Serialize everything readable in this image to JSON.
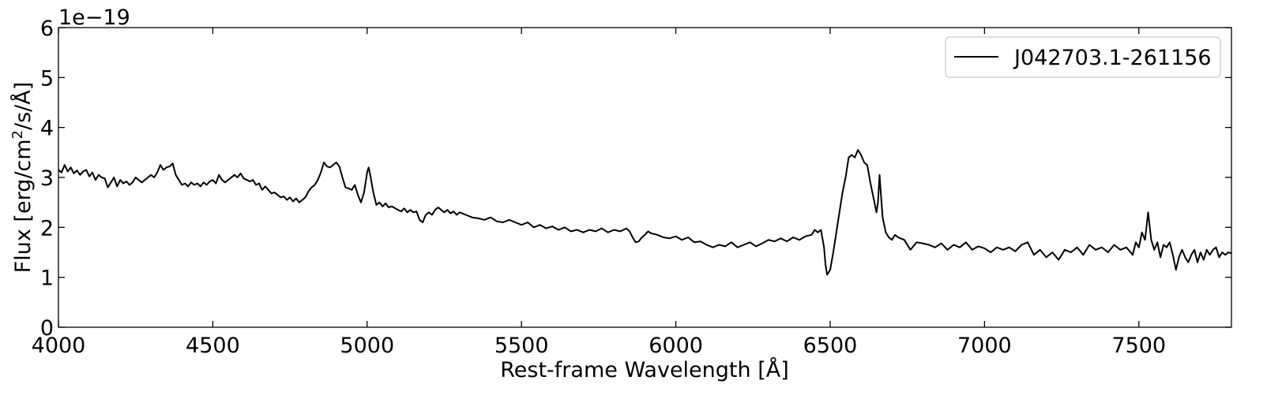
{
  "chart_data": {
    "type": "line",
    "xlabel": "Rest-frame Wavelength [Å]",
    "ylabel_main": "Flux [erg/cm",
    "ylabel_sup": "2",
    "ylabel_tail": "/s/Å]",
    "y_offset_text": "1e−19",
    "xlim": [
      4000,
      7800
    ],
    "ylim": [
      0,
      6
    ],
    "y_scale_factor": 1e-19,
    "x_ticks": [
      4000,
      4500,
      5000,
      5500,
      6000,
      6500,
      7000,
      7500
    ],
    "y_ticks": [
      0,
      1,
      2,
      3,
      4,
      5,
      6
    ],
    "x_tick_labels": [
      "4000",
      "4500",
      "5000",
      "5500",
      "6000",
      "6500",
      "7000",
      "7500"
    ],
    "y_tick_labels": [
      "0",
      "1",
      "2",
      "3",
      "4",
      "5",
      "6"
    ],
    "grid": false,
    "legend_position": "top-right",
    "series": [
      {
        "name": "J042703.1-261156",
        "color": "#000000",
        "points": [
          [
            4000,
            3.15
          ],
          [
            4010,
            3.1
          ],
          [
            4020,
            3.25
          ],
          [
            4030,
            3.12
          ],
          [
            4040,
            3.2
          ],
          [
            4050,
            3.08
          ],
          [
            4060,
            3.14
          ],
          [
            4070,
            3.05
          ],
          [
            4080,
            3.12
          ],
          [
            4090,
            3.15
          ],
          [
            4100,
            3.02
          ],
          [
            4110,
            3.1
          ],
          [
            4120,
            2.95
          ],
          [
            4130,
            3.05
          ],
          [
            4140,
            3.0
          ],
          [
            4150,
            2.98
          ],
          [
            4160,
            2.8
          ],
          [
            4170,
            2.9
          ],
          [
            4180,
            3.0
          ],
          [
            4190,
            2.82
          ],
          [
            4200,
            2.95
          ],
          [
            4210,
            2.88
          ],
          [
            4220,
            2.92
          ],
          [
            4230,
            2.85
          ],
          [
            4240,
            2.9
          ],
          [
            4250,
            3.0
          ],
          [
            4260,
            2.95
          ],
          [
            4270,
            2.9
          ],
          [
            4280,
            2.95
          ],
          [
            4290,
            3.0
          ],
          [
            4300,
            3.05
          ],
          [
            4310,
            3.0
          ],
          [
            4320,
            3.1
          ],
          [
            4330,
            3.25
          ],
          [
            4340,
            3.15
          ],
          [
            4350,
            3.2
          ],
          [
            4360,
            3.22
          ],
          [
            4370,
            3.28
          ],
          [
            4380,
            3.05
          ],
          [
            4390,
            2.95
          ],
          [
            4400,
            2.85
          ],
          [
            4410,
            2.88
          ],
          [
            4420,
            2.82
          ],
          [
            4430,
            2.9
          ],
          [
            4440,
            2.85
          ],
          [
            4450,
            2.88
          ],
          [
            4460,
            2.82
          ],
          [
            4470,
            2.9
          ],
          [
            4480,
            2.85
          ],
          [
            4490,
            2.92
          ],
          [
            4500,
            2.95
          ],
          [
            4510,
            2.88
          ],
          [
            4520,
            3.05
          ],
          [
            4530,
            2.95
          ],
          [
            4540,
            2.9
          ],
          [
            4550,
            2.95
          ],
          [
            4560,
            3.0
          ],
          [
            4570,
            3.05
          ],
          [
            4580,
            3.0
          ],
          [
            4590,
            3.08
          ],
          [
            4600,
            2.98
          ],
          [
            4610,
            2.95
          ],
          [
            4620,
            2.92
          ],
          [
            4630,
            2.95
          ],
          [
            4640,
            2.85
          ],
          [
            4650,
            2.88
          ],
          [
            4660,
            2.75
          ],
          [
            4670,
            2.82
          ],
          [
            4680,
            2.75
          ],
          [
            4690,
            2.68
          ],
          [
            4700,
            2.7
          ],
          [
            4710,
            2.65
          ],
          [
            4720,
            2.6
          ],
          [
            4730,
            2.62
          ],
          [
            4740,
            2.55
          ],
          [
            4750,
            2.6
          ],
          [
            4760,
            2.52
          ],
          [
            4770,
            2.58
          ],
          [
            4780,
            2.5
          ],
          [
            4790,
            2.55
          ],
          [
            4800,
            2.6
          ],
          [
            4810,
            2.72
          ],
          [
            4820,
            2.8
          ],
          [
            4830,
            2.85
          ],
          [
            4840,
            2.95
          ],
          [
            4850,
            3.1
          ],
          [
            4860,
            3.3
          ],
          [
            4870,
            3.22
          ],
          [
            4880,
            3.2
          ],
          [
            4890,
            3.25
          ],
          [
            4900,
            3.3
          ],
          [
            4910,
            3.22
          ],
          [
            4920,
            3.0
          ],
          [
            4930,
            2.8
          ],
          [
            4940,
            2.78
          ],
          [
            4950,
            2.75
          ],
          [
            4960,
            2.85
          ],
          [
            4970,
            2.65
          ],
          [
            4980,
            2.5
          ],
          [
            4990,
            2.7
          ],
          [
            5000,
            3.1
          ],
          [
            5005,
            3.2
          ],
          [
            5010,
            3.05
          ],
          [
            5020,
            2.7
          ],
          [
            5030,
            2.45
          ],
          [
            5040,
            2.5
          ],
          [
            5050,
            2.42
          ],
          [
            5060,
            2.48
          ],
          [
            5070,
            2.4
          ],
          [
            5080,
            2.42
          ],
          [
            5100,
            2.35
          ],
          [
            5110,
            2.32
          ],
          [
            5120,
            2.38
          ],
          [
            5130,
            2.3
          ],
          [
            5140,
            2.35
          ],
          [
            5150,
            2.3
          ],
          [
            5160,
            2.32
          ],
          [
            5170,
            2.15
          ],
          [
            5180,
            2.1
          ],
          [
            5190,
            2.25
          ],
          [
            5200,
            2.3
          ],
          [
            5210,
            2.25
          ],
          [
            5220,
            2.35
          ],
          [
            5230,
            2.4
          ],
          [
            5240,
            2.35
          ],
          [
            5250,
            2.3
          ],
          [
            5260,
            2.35
          ],
          [
            5270,
            2.28
          ],
          [
            5280,
            2.32
          ],
          [
            5290,
            2.25
          ],
          [
            5300,
            2.3
          ],
          [
            5320,
            2.25
          ],
          [
            5340,
            2.2
          ],
          [
            5360,
            2.18
          ],
          [
            5380,
            2.15
          ],
          [
            5400,
            2.2
          ],
          [
            5420,
            2.12
          ],
          [
            5440,
            2.1
          ],
          [
            5460,
            2.15
          ],
          [
            5480,
            2.1
          ],
          [
            5500,
            2.05
          ],
          [
            5520,
            2.1
          ],
          [
            5540,
            2.0
          ],
          [
            5560,
            2.05
          ],
          [
            5580,
            1.98
          ],
          [
            5600,
            2.02
          ],
          [
            5620,
            1.95
          ],
          [
            5640,
            2.0
          ],
          [
            5660,
            1.92
          ],
          [
            5680,
            1.95
          ],
          [
            5700,
            1.9
          ],
          [
            5720,
            1.95
          ],
          [
            5740,
            1.92
          ],
          [
            5760,
            1.98
          ],
          [
            5780,
            1.9
          ],
          [
            5800,
            1.95
          ],
          [
            5820,
            1.92
          ],
          [
            5840,
            1.98
          ],
          [
            5850,
            1.92
          ],
          [
            5860,
            1.8
          ],
          [
            5870,
            1.7
          ],
          [
            5880,
            1.72
          ],
          [
            5890,
            1.8
          ],
          [
            5900,
            1.85
          ],
          [
            5910,
            1.92
          ],
          [
            5920,
            1.88
          ],
          [
            5940,
            1.85
          ],
          [
            5960,
            1.8
          ],
          [
            5980,
            1.78
          ],
          [
            6000,
            1.82
          ],
          [
            6020,
            1.75
          ],
          [
            6040,
            1.8
          ],
          [
            6060,
            1.7
          ],
          [
            6080,
            1.72
          ],
          [
            6100,
            1.65
          ],
          [
            6120,
            1.6
          ],
          [
            6140,
            1.65
          ],
          [
            6160,
            1.62
          ],
          [
            6180,
            1.7
          ],
          [
            6200,
            1.6
          ],
          [
            6220,
            1.65
          ],
          [
            6240,
            1.7
          ],
          [
            6260,
            1.62
          ],
          [
            6280,
            1.68
          ],
          [
            6300,
            1.75
          ],
          [
            6320,
            1.72
          ],
          [
            6340,
            1.78
          ],
          [
            6360,
            1.72
          ],
          [
            6380,
            1.8
          ],
          [
            6400,
            1.75
          ],
          [
            6420,
            1.82
          ],
          [
            6440,
            1.85
          ],
          [
            6450,
            1.95
          ],
          [
            6460,
            1.9
          ],
          [
            6470,
            1.95
          ],
          [
            6480,
            1.6
          ],
          [
            6485,
            1.25
          ],
          [
            6490,
            1.05
          ],
          [
            6500,
            1.15
          ],
          [
            6510,
            1.5
          ],
          [
            6520,
            1.9
          ],
          [
            6530,
            2.3
          ],
          [
            6540,
            2.7
          ],
          [
            6550,
            3.0
          ],
          [
            6560,
            3.4
          ],
          [
            6570,
            3.45
          ],
          [
            6580,
            3.4
          ],
          [
            6590,
            3.55
          ],
          [
            6600,
            3.45
          ],
          [
            6610,
            3.3
          ],
          [
            6620,
            3.25
          ],
          [
            6630,
            2.9
          ],
          [
            6640,
            2.6
          ],
          [
            6650,
            2.3
          ],
          [
            6655,
            2.5
          ],
          [
            6660,
            3.05
          ],
          [
            6665,
            2.6
          ],
          [
            6670,
            2.2
          ],
          [
            6680,
            1.9
          ],
          [
            6690,
            1.8
          ],
          [
            6700,
            1.75
          ],
          [
            6710,
            1.85
          ],
          [
            6720,
            1.8
          ],
          [
            6740,
            1.75
          ],
          [
            6760,
            1.55
          ],
          [
            6780,
            1.7
          ],
          [
            6800,
            1.68
          ],
          [
            6820,
            1.65
          ],
          [
            6840,
            1.6
          ],
          [
            6860,
            1.68
          ],
          [
            6880,
            1.55
          ],
          [
            6900,
            1.65
          ],
          [
            6920,
            1.6
          ],
          [
            6940,
            1.7
          ],
          [
            6960,
            1.55
          ],
          [
            6980,
            1.62
          ],
          [
            7000,
            1.58
          ],
          [
            7020,
            1.5
          ],
          [
            7040,
            1.6
          ],
          [
            7060,
            1.55
          ],
          [
            7080,
            1.6
          ],
          [
            7100,
            1.52
          ],
          [
            7120,
            1.65
          ],
          [
            7140,
            1.7
          ],
          [
            7160,
            1.45
          ],
          [
            7180,
            1.55
          ],
          [
            7200,
            1.4
          ],
          [
            7220,
            1.5
          ],
          [
            7240,
            1.35
          ],
          [
            7260,
            1.55
          ],
          [
            7280,
            1.5
          ],
          [
            7300,
            1.6
          ],
          [
            7320,
            1.45
          ],
          [
            7340,
            1.65
          ],
          [
            7360,
            1.55
          ],
          [
            7380,
            1.6
          ],
          [
            7400,
            1.5
          ],
          [
            7420,
            1.65
          ],
          [
            7440,
            1.55
          ],
          [
            7460,
            1.6
          ],
          [
            7480,
            1.45
          ],
          [
            7490,
            1.7
          ],
          [
            7500,
            1.6
          ],
          [
            7510,
            1.9
          ],
          [
            7520,
            1.75
          ],
          [
            7530,
            2.3
          ],
          [
            7540,
            1.75
          ],
          [
            7550,
            1.55
          ],
          [
            7560,
            1.7
          ],
          [
            7570,
            1.4
          ],
          [
            7580,
            1.65
          ],
          [
            7590,
            1.6
          ],
          [
            7600,
            1.7
          ],
          [
            7610,
            1.45
          ],
          [
            7620,
            1.15
          ],
          [
            7630,
            1.4
          ],
          [
            7640,
            1.55
          ],
          [
            7650,
            1.4
          ],
          [
            7660,
            1.3
          ],
          [
            7670,
            1.45
          ],
          [
            7680,
            1.55
          ],
          [
            7690,
            1.3
          ],
          [
            7700,
            1.5
          ],
          [
            7710,
            1.35
          ],
          [
            7720,
            1.55
          ],
          [
            7730,
            1.45
          ],
          [
            7740,
            1.55
          ],
          [
            7750,
            1.6
          ],
          [
            7760,
            1.4
          ],
          [
            7770,
            1.5
          ],
          [
            7780,
            1.45
          ],
          [
            7790,
            1.5
          ],
          [
            7800,
            1.48
          ]
        ]
      }
    ]
  }
}
